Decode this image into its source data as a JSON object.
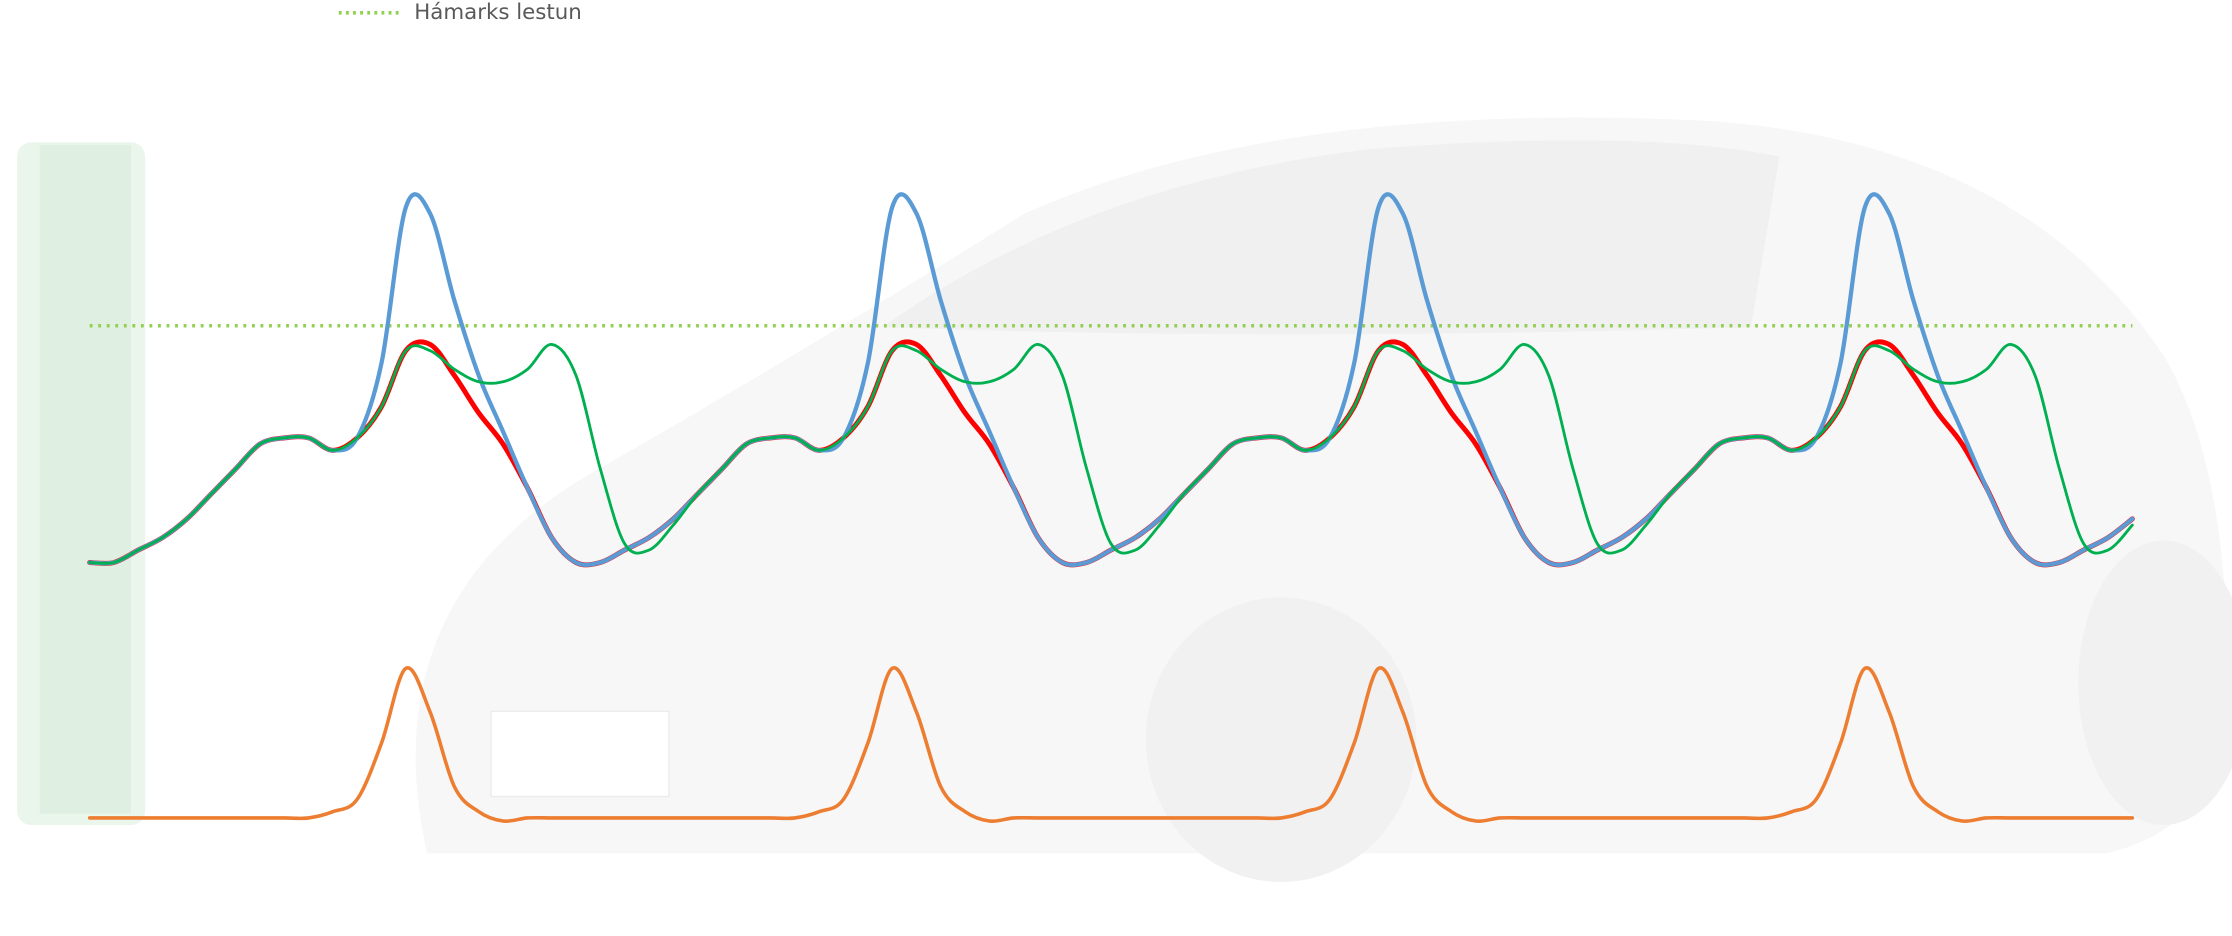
{
  "chart_data": {
    "type": "line",
    "x": [
      0,
      1,
      2,
      3,
      4,
      5,
      6,
      7,
      8,
      9,
      10,
      11,
      12,
      13,
      14,
      15,
      16,
      17,
      18,
      19,
      20,
      21,
      22,
      23,
      24,
      25,
      26,
      27,
      28,
      29,
      30,
      31,
      32,
      33,
      34,
      35,
      36,
      37,
      38,
      39,
      40,
      41,
      42,
      43,
      44,
      45,
      46,
      47,
      48,
      49,
      50,
      51,
      52,
      53,
      54,
      55,
      56,
      57,
      58,
      59,
      60,
      61,
      62,
      63,
      64,
      65,
      66,
      67,
      68,
      69,
      70,
      71,
      72,
      73,
      74,
      75,
      76,
      77,
      78,
      79,
      80,
      81,
      82,
      83,
      84
    ],
    "series": [
      {
        "color": "#ed7d31",
        "width": 2.5,
        "values": [
          0,
          0,
          0,
          0,
          0,
          0,
          0,
          0,
          0,
          0,
          1,
          3,
          12,
          24,
          17,
          5,
          1,
          -0.5,
          0,
          0,
          0,
          0,
          0,
          0,
          0,
          0,
          0,
          0,
          0,
          0,
          1,
          3,
          12,
          24,
          17,
          5,
          1,
          -0.5,
          0,
          0,
          0,
          0,
          0,
          0,
          0,
          0,
          0,
          0,
          0,
          0,
          1,
          3,
          12,
          24,
          17,
          5,
          1,
          -0.5,
          0,
          0,
          0,
          0,
          0,
          0,
          0,
          0,
          0,
          0,
          0,
          0,
          1,
          3,
          12,
          24,
          17,
          5,
          1,
          -0.5,
          0,
          0,
          0,
          0,
          0,
          0,
          0
        ]
      },
      {
        "color": "#ff0000",
        "width": 3.5,
        "values": [
          41,
          41,
          43,
          45,
          48,
          52,
          56,
          60,
          61,
          61,
          59,
          61,
          66,
          75,
          76,
          71,
          65,
          60,
          53,
          45,
          41,
          41,
          43,
          45,
          48,
          52,
          56,
          60,
          61,
          61,
          59,
          61,
          66,
          75,
          76,
          71,
          65,
          60,
          53,
          45,
          41,
          41,
          43,
          45,
          48,
          52,
          56,
          60,
          61,
          61,
          59,
          61,
          66,
          75,
          76,
          71,
          65,
          60,
          53,
          45,
          41,
          41,
          43,
          45,
          48,
          52,
          56,
          60,
          61,
          61,
          59,
          61,
          66,
          75,
          76,
          71,
          65,
          60,
          53,
          45,
          41,
          41,
          43,
          45,
          48
        ]
      },
      {
        "color": "#5b9bd5",
        "width": 3,
        "values": [
          41,
          41,
          43,
          45,
          48,
          52,
          56,
          60,
          61,
          61,
          59,
          61,
          73,
          98,
          97,
          83,
          71,
          62,
          53,
          45,
          41,
          41,
          43,
          45,
          48,
          52,
          56,
          60,
          61,
          61,
          59,
          61,
          73,
          98,
          97,
          83,
          71,
          62,
          53,
          45,
          41,
          41,
          43,
          45,
          48,
          52,
          56,
          60,
          61,
          61,
          59,
          61,
          73,
          98,
          97,
          83,
          71,
          62,
          53,
          45,
          41,
          41,
          43,
          45,
          48,
          52,
          56,
          60,
          61,
          61,
          59,
          61,
          73,
          98,
          97,
          83,
          71,
          62,
          53,
          45,
          41,
          41,
          43,
          45,
          48
        ]
      },
      {
        "color": "#00b050",
        "width": 2,
        "values": [
          41,
          41,
          43,
          45,
          48,
          52,
          56,
          60,
          61,
          61,
          59,
          61,
          66,
          75,
          75,
          72,
          70,
          70,
          72,
          76,
          71,
          56,
          44,
          43,
          47,
          52,
          56,
          60,
          61,
          61,
          59,
          61,
          66,
          75,
          75,
          72,
          70,
          70,
          72,
          76,
          71,
          56,
          44,
          43,
          47,
          52,
          56,
          60,
          61,
          61,
          59,
          61,
          66,
          75,
          75,
          72,
          70,
          70,
          72,
          76,
          71,
          56,
          44,
          43,
          47,
          52,
          56,
          60,
          61,
          61,
          59,
          61,
          66,
          75,
          75,
          72,
          70,
          70,
          72,
          76,
          71,
          56,
          44,
          43,
          47
        ]
      }
    ],
    "threshold": {
      "name": "Hámarks lestun",
      "value": 79,
      "color": "#92d050"
    }
  }
}
